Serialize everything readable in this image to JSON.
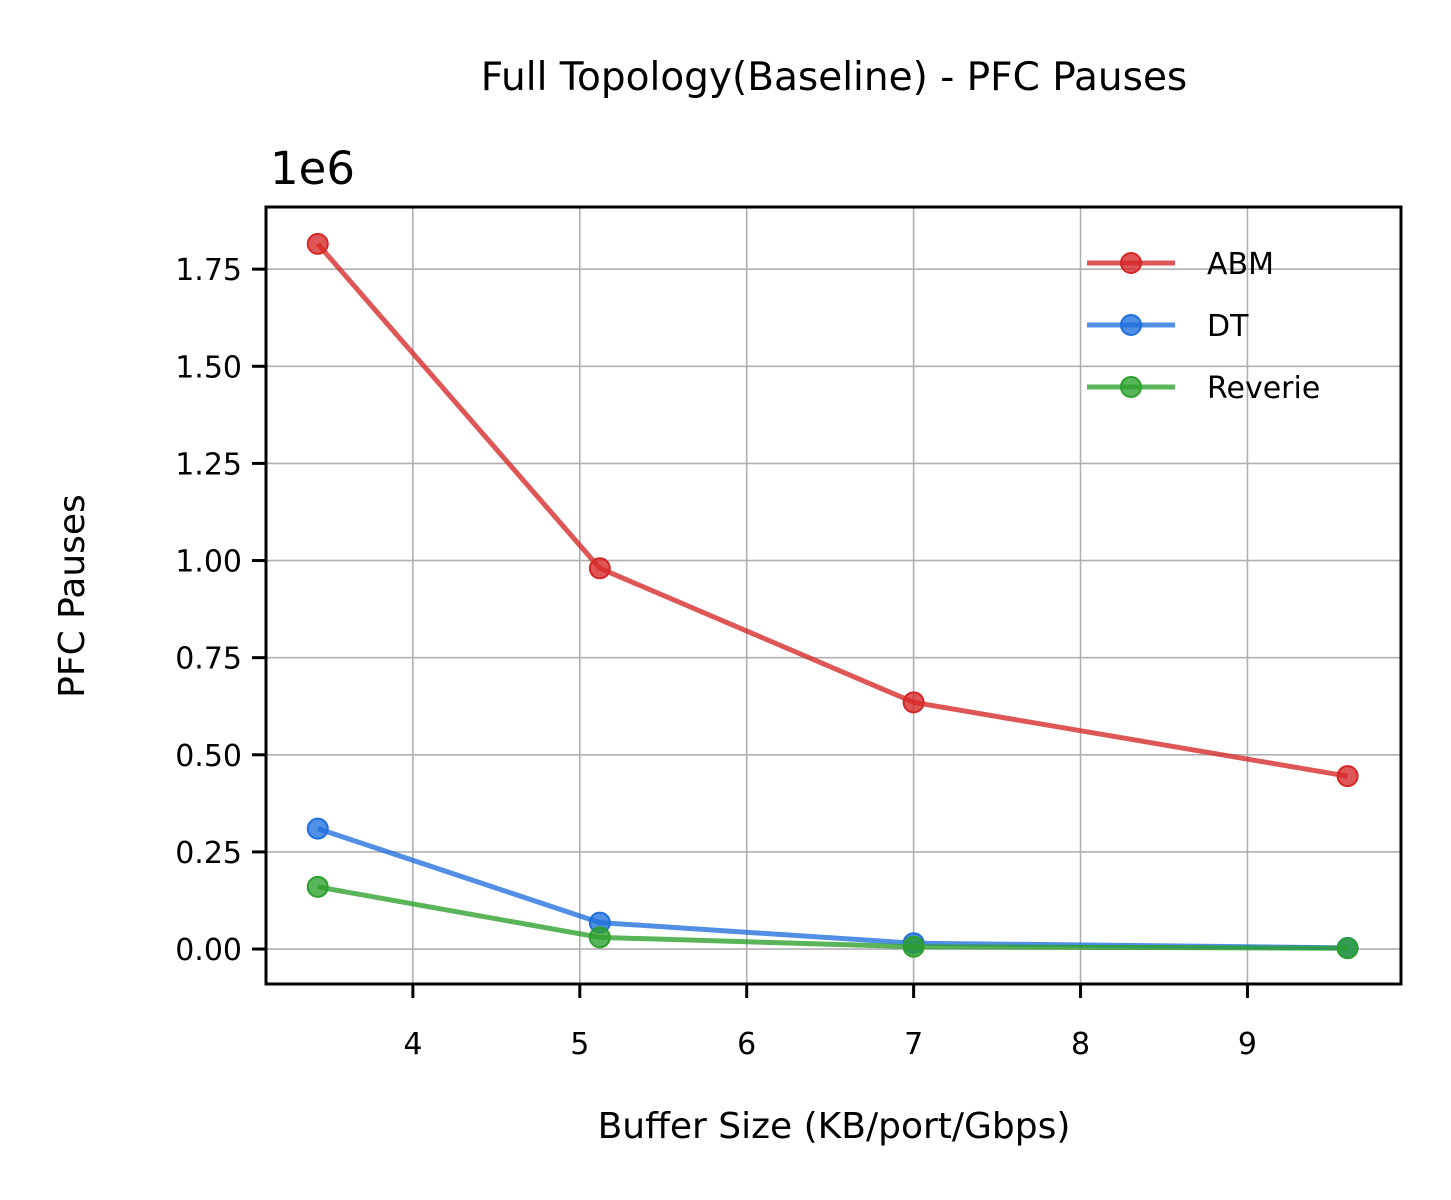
{
  "chart_data": {
    "type": "line",
    "title": "Full Topology(Baseline) - PFC Pauses",
    "xlabel": "Buffer Size (KB/port/Gbps)",
    "ylabel": "PFC Pauses",
    "y_offset_label": "1e6",
    "xlim": [
      3.12,
      9.92
    ],
    "ylim": [
      -0.09,
      1.91
    ],
    "x_ticks": [
      4,
      5,
      6,
      7,
      8,
      9
    ],
    "x_tick_labels": [
      "4",
      "5",
      "6",
      "7",
      "8",
      "9"
    ],
    "y_ticks": [
      0,
      0.25,
      0.5,
      0.75,
      1.0,
      1.25,
      1.5,
      1.75
    ],
    "y_tick_labels": [
      "0.00",
      "0.25",
      "0.50",
      "0.75",
      "1.00",
      "1.25",
      "1.50",
      "1.75"
    ],
    "grid": true,
    "legend_position": "top-right",
    "x": [
      3.43,
      5.12,
      7.0,
      9.6
    ],
    "series": [
      {
        "name": "ABM",
        "color": "#d62728",
        "values": [
          1.815,
          0.98,
          0.635,
          0.445
        ]
      },
      {
        "name": "DT",
        "color": "#1f6fdd",
        "values": [
          0.31,
          0.068,
          0.015,
          0.003
        ]
      },
      {
        "name": "Reverie",
        "color": "#2ca02c",
        "values": [
          0.16,
          0.03,
          0.006,
          0.002
        ]
      }
    ]
  }
}
